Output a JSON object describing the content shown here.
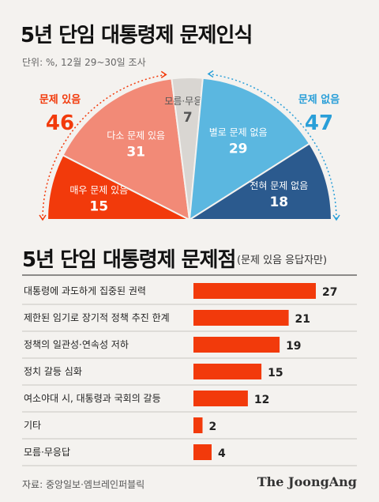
{
  "header": {
    "title": "5년 단임 대통령제 문제인식",
    "unit": "단위: %, 12월 29~30일 조사"
  },
  "section2": {
    "title": "5년 단임 대통령제 문제점",
    "subtitle": "(문제 있음 응답자만)"
  },
  "footer": {
    "source": "자료: 중앙일보·엠브레인퍼블릭",
    "brand": "The JoongAng"
  },
  "colors": {
    "red_dark": "#f23a0b",
    "red_light": "#f28a77",
    "gray": "#d9d6d2",
    "blue_light": "#5bb7e0",
    "blue_dark": "#2b5a8e",
    "bar": "#f23a0b"
  },
  "chart_data": [
    {
      "type": "pie",
      "variant": "half-donut",
      "groups": [
        {
          "label": "문제 있음",
          "value": 46,
          "color": "#f23a0b"
        },
        {
          "label": "문제 없음",
          "value": 47,
          "color": "#2a9fd8"
        }
      ],
      "segments": [
        {
          "label": "매우 문제 있음",
          "value": 15,
          "color": "#f23a0b",
          "text_color": "#ffffff"
        },
        {
          "label": "다소 문제 있음",
          "value": 31,
          "color": "#f28a77",
          "text_color": "#ffffff"
        },
        {
          "label": "모름·무응답",
          "value": 7,
          "color": "#d9d6d2",
          "text_color": "#555555"
        },
        {
          "label": "별로 문제 없음",
          "value": 29,
          "color": "#5bb7e0",
          "text_color": "#ffffff"
        },
        {
          "label": "전혀 문제 없음",
          "value": 18,
          "color": "#2b5a8e",
          "text_color": "#ffffff"
        }
      ]
    },
    {
      "type": "bar",
      "orientation": "horizontal",
      "categories": [
        "대통령에 과도하게 집중된 권력",
        "제한된 임기로 장기적 정책 추진 한계",
        "정책의 일관성·연속성 저하",
        "정치 갈등 심화",
        "여소야대 시, 대통령과 국회의 갈등",
        "기타",
        "모름·무응답"
      ],
      "values": [
        27,
        21,
        19,
        15,
        12,
        2,
        4
      ],
      "xlim": [
        0,
        27
      ]
    }
  ]
}
